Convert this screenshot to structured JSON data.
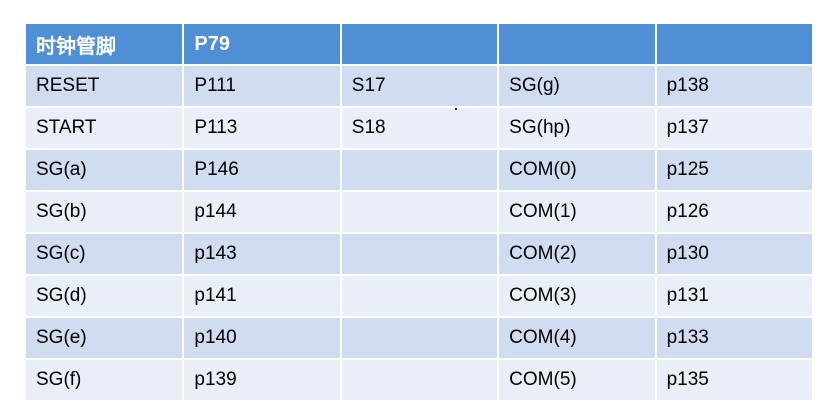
{
  "table": {
    "header": [
      "时钟管脚",
      "P79",
      "",
      "",
      ""
    ],
    "rows": [
      [
        "RESET",
        "P111",
        "S17",
        "SG(g)",
        "p138"
      ],
      [
        "START",
        "P113",
        "S18",
        "SG(hp)",
        "p137"
      ],
      [
        "SG(a)",
        "P146",
        "",
        "COM(0)",
        "p125"
      ],
      [
        "SG(b)",
        "p144",
        "",
        "COM(1)",
        "p126"
      ],
      [
        "SG(c)",
        "p143",
        "",
        "COM(2)",
        "p130"
      ],
      [
        "SG(d)",
        "p141",
        "",
        "COM(3)",
        "p131"
      ],
      [
        "SG(e)",
        "p140",
        "",
        "COM(4)",
        "p133"
      ],
      [
        "SG(f)",
        "p139",
        "",
        "COM(5)",
        "p135"
      ]
    ]
  },
  "colors": {
    "header_bg": "#4f8fd6",
    "header_text": "#ffffff",
    "row_odd_bg": "#d0dcef",
    "row_even_bg": "#e9eef7"
  }
}
